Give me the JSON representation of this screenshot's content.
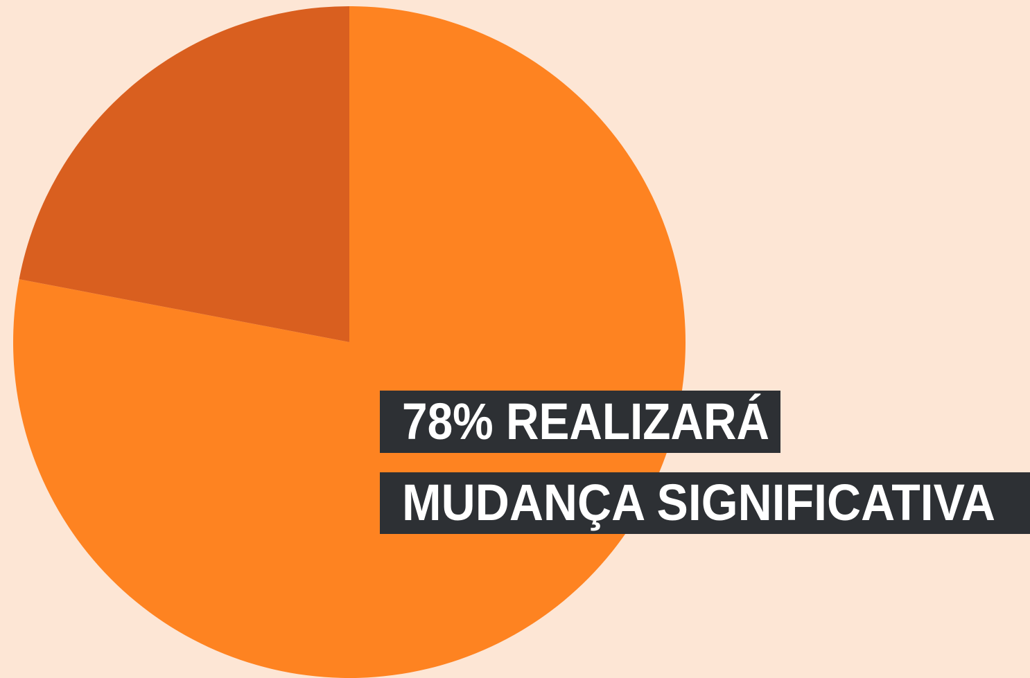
{
  "chart_data": {
    "type": "pie",
    "categories": [
      null,
      null
    ],
    "values": [
      78,
      22
    ],
    "colors": [
      "#fe8321",
      "#d95f1f"
    ],
    "start_angle": 0,
    "direction": "clockwise",
    "annotations": [
      "78% REALIZARÁ",
      "MUDANÇA SIGNIFICATIVA"
    ]
  }
}
